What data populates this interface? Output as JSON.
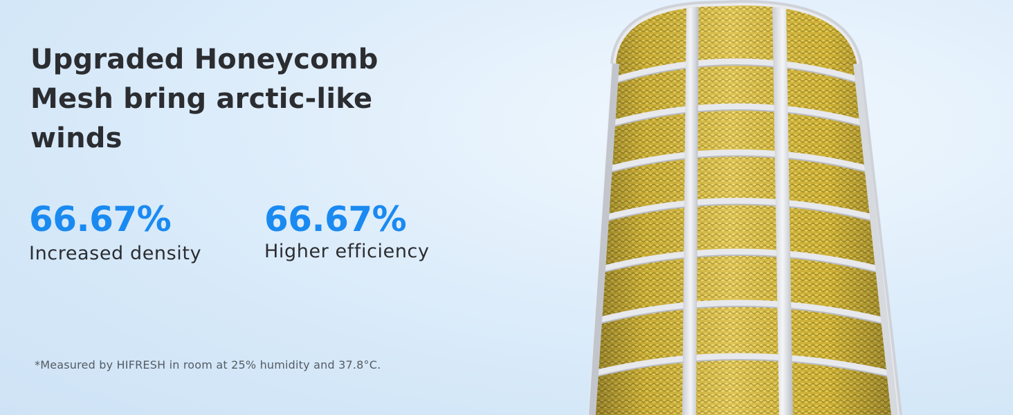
{
  "headline": {
    "lines": [
      "Upgraded Honeycomb",
      "Mesh bring arctic-like",
      "winds"
    ]
  },
  "stats": [
    {
      "value": "66.67%",
      "label": "Increased density"
    },
    {
      "value": "66.67%",
      "label": "Higher efficiency"
    }
  ],
  "footnote": "*Measured by HIFRESH in room at 25% humidity and 37.8°C.",
  "colors": {
    "accent": "#1a8af1",
    "text": "#2b2d31",
    "background": "#d9eaf9",
    "mesh": "#d9bc3c",
    "frame": "#e6e8ec"
  },
  "image": {
    "subject": "honeycomb-mesh-filter-icon"
  }
}
